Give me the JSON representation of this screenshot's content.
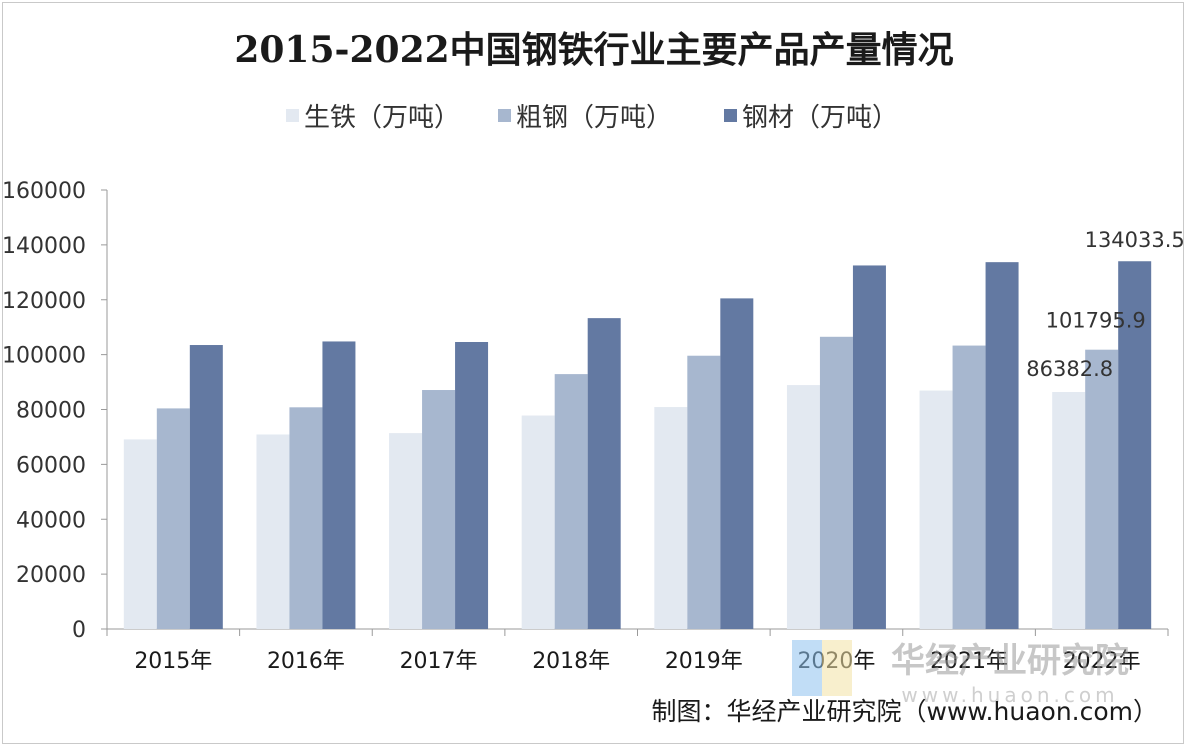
{
  "chart_data": {
    "type": "bar",
    "title": "2015-2022中国钢铁行业主要产品产量情况",
    "categories": [
      "2015年",
      "2016年",
      "2017年",
      "2018年",
      "2019年",
      "2020年",
      "2021年",
      "2022年"
    ],
    "series": [
      {
        "name": "生铁（万吨）",
        "color": "#e3e9f1",
        "values": [
          69100,
          70900,
          71400,
          77800,
          80900,
          88900,
          86900,
          86382.8
        ]
      },
      {
        "name": "粗钢（万吨）",
        "color": "#a7b7cf",
        "values": [
          80400,
          80800,
          87100,
          92900,
          99600,
          106500,
          103300,
          101795.9
        ]
      },
      {
        "name": "钢材（万吨）",
        "color": "#6379a2",
        "values": [
          103500,
          104800,
          104600,
          113300,
          120500,
          132500,
          133700,
          134033.5
        ]
      }
    ],
    "ylim": [
      0,
      160000
    ],
    "yticks": [
      "0",
      "20000",
      "40000",
      "60000",
      "80000",
      "100000",
      "120000",
      "140000",
      "160000"
    ],
    "data_labels": [
      {
        "series": 0,
        "category": 7,
        "text": "86382.8"
      },
      {
        "series": 1,
        "category": 7,
        "text": "101795.9"
      },
      {
        "series": 2,
        "category": 7,
        "text": "134033.5"
      }
    ],
    "legend_position": "top",
    "grid": false
  },
  "source_text": "制图：华经产业研究院（www.huaon.com）",
  "watermark": {
    "name": "华经产业研究院",
    "url": "www.huaon.com"
  }
}
